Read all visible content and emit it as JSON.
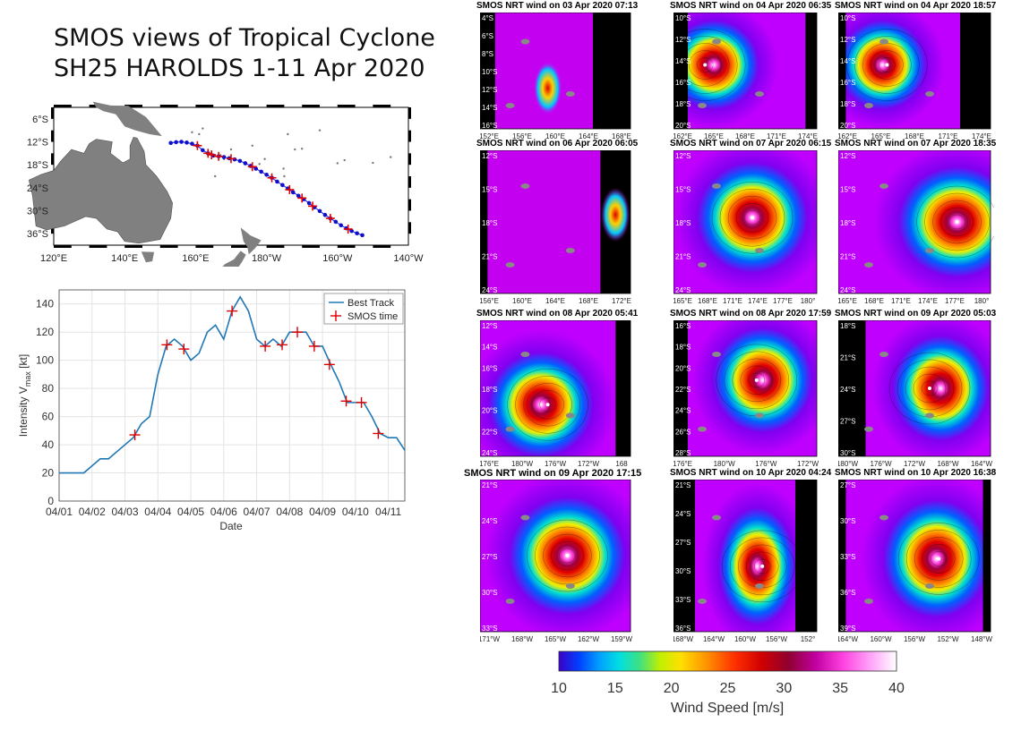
{
  "page_title": {
    "line1": "SMOS views of Tropical Cyclone",
    "line2": "SH25 HAROLDS 1-11 Apr 2020"
  },
  "track_map": {
    "lon_labels": [
      "120°E",
      "140°E",
      "160°E",
      "180°W",
      "160°W",
      "140°W"
    ],
    "lat_labels": [
      "6°S",
      "12°S",
      "18°S",
      "24°S",
      "30°S",
      "36°S"
    ],
    "best_track_points": [
      [
        153.0,
        -12.3
      ],
      [
        154.5,
        -12.1
      ],
      [
        156.0,
        -12.0
      ],
      [
        157.5,
        -12.2
      ],
      [
        159.0,
        -12.5
      ],
      [
        160.5,
        -13.0
      ],
      [
        162.0,
        -14.2
      ],
      [
        163.5,
        -15.0
      ],
      [
        165.0,
        -15.6
      ],
      [
        166.5,
        -15.8
      ],
      [
        168.0,
        -16.0
      ],
      [
        169.5,
        -16.3
      ],
      [
        171.0,
        -16.6
      ],
      [
        172.5,
        -17.0
      ],
      [
        174.0,
        -17.6
      ],
      [
        175.5,
        -18.3
      ],
      [
        177.0,
        -19.0
      ],
      [
        178.5,
        -19.8
      ],
      [
        180.0,
        -20.6
      ],
      [
        181.5,
        -21.4
      ],
      [
        183.0,
        -22.4
      ],
      [
        184.5,
        -23.3
      ],
      [
        186.0,
        -24.2
      ],
      [
        187.5,
        -25.2
      ],
      [
        189.0,
        -26.1
      ],
      [
        190.5,
        -27.0
      ],
      [
        192.0,
        -28.0
      ],
      [
        193.5,
        -29.1
      ],
      [
        195.0,
        -30.1
      ],
      [
        196.5,
        -31.1
      ],
      [
        198.0,
        -32.0
      ],
      [
        199.5,
        -32.9
      ],
      [
        201.0,
        -33.8
      ],
      [
        202.5,
        -34.6
      ],
      [
        204.0,
        -35.3
      ],
      [
        205.5,
        -35.9
      ],
      [
        207.0,
        -36.4
      ]
    ],
    "smos_points": [
      [
        160.5,
        -13.0
      ],
      [
        163.5,
        -15.0
      ],
      [
        164.5,
        -15.4
      ],
      [
        166.5,
        -15.8
      ],
      [
        170.0,
        -16.4
      ],
      [
        176.0,
        -18.5
      ],
      [
        181.5,
        -21.4
      ],
      [
        186.5,
        -24.5
      ],
      [
        190.0,
        -26.7
      ],
      [
        193.0,
        -28.8
      ],
      [
        198.0,
        -32.0
      ],
      [
        203.0,
        -34.8
      ]
    ]
  },
  "chart_data": {
    "type": "line",
    "xlabel": "Date",
    "ylabel": "Intensity V_max [kt]",
    "ylim": [
      0,
      150
    ],
    "yticks": [
      0,
      20,
      40,
      60,
      80,
      100,
      120,
      140
    ],
    "x_range": [
      "04/01 00:00",
      "04/11 12:00"
    ],
    "xticks": [
      "04/01",
      "04/02",
      "04/03",
      "04/04",
      "04/05",
      "04/06",
      "04/07",
      "04/08",
      "04/09",
      "04/10",
      "04/11"
    ],
    "grid": true,
    "legend_position": "top-right",
    "series": [
      {
        "name": "Best Track",
        "color": "#1f77b4",
        "points": [
          [
            "04/01 00:00",
            20
          ],
          [
            "04/01 18:00",
            20
          ],
          [
            "04/02 06:00",
            30
          ],
          [
            "04/02 12:00",
            30
          ],
          [
            "04/02 18:00",
            35
          ],
          [
            "04/03 06:00",
            45
          ],
          [
            "04/03 12:00",
            55
          ],
          [
            "04/03 18:00",
            60
          ],
          [
            "04/04 00:00",
            90
          ],
          [
            "04/04 06:00",
            110
          ],
          [
            "04/04 12:00",
            115
          ],
          [
            "04/04 18:00",
            110
          ],
          [
            "04/05 00:00",
            100
          ],
          [
            "04/05 06:00",
            105
          ],
          [
            "04/05 12:00",
            120
          ],
          [
            "04/05 18:00",
            125
          ],
          [
            "04/06 00:00",
            115
          ],
          [
            "04/06 06:00",
            135
          ],
          [
            "04/06 12:00",
            145
          ],
          [
            "04/06 18:00",
            135
          ],
          [
            "04/07 00:00",
            115
          ],
          [
            "04/07 06:00",
            110
          ],
          [
            "04/07 12:00",
            115
          ],
          [
            "04/07 18:00",
            110
          ],
          [
            "04/08 00:00",
            120
          ],
          [
            "04/08 06:00",
            120
          ],
          [
            "04/08 12:00",
            120
          ],
          [
            "04/08 18:00",
            110
          ],
          [
            "04/09 00:00",
            110
          ],
          [
            "04/09 06:00",
            97
          ],
          [
            "04/09 12:00",
            85
          ],
          [
            "04/09 18:00",
            70
          ],
          [
            "04/10 00:00",
            70
          ],
          [
            "04/10 06:00",
            70
          ],
          [
            "04/10 12:00",
            60
          ],
          [
            "04/10 18:00",
            48
          ],
          [
            "04/11 00:00",
            45
          ],
          [
            "04/11 06:00",
            45
          ],
          [
            "04/11 12:00",
            36
          ]
        ]
      },
      {
        "name": "SMOS time",
        "color": "#e00000",
        "points": [
          [
            "04/03 07:13",
            47
          ],
          [
            "04/04 06:35",
            111
          ],
          [
            "04/04 18:57",
            108
          ],
          [
            "04/06 06:05",
            135
          ],
          [
            "04/07 06:15",
            110
          ],
          [
            "04/07 18:35",
            111
          ],
          [
            "04/08 05:41",
            120
          ],
          [
            "04/08 17:59",
            110
          ],
          [
            "04/09 05:03",
            97
          ],
          [
            "04/09 17:15",
            71
          ],
          [
            "04/10 04:24",
            70
          ],
          [
            "04/10 16:38",
            48
          ]
        ]
      }
    ]
  },
  "panels": [
    {
      "title": "SMOS NRT wind on 03 Apr 2020 07:13",
      "lat_labels": [
        "4°S",
        "6°S",
        "8°S",
        "10°S",
        "12°S",
        "14°S",
        "16°S"
      ],
      "lon_labels": [
        "152°E",
        "156°E",
        "160°E",
        "164°E",
        "168°E"
      ]
    },
    {
      "title": "SMOS NRT wind on 04 Apr 2020 06:35",
      "lat_labels": [
        "10°S",
        "12°S",
        "14°S",
        "16°S",
        "18°S",
        "20°S"
      ],
      "lon_labels": [
        "162°E",
        "165°E",
        "168°E",
        "171°E",
        "174°E"
      ]
    },
    {
      "title": "SMOS NRT wind on 04 Apr 2020 18:57",
      "lat_labels": [
        "10°S",
        "12°S",
        "14°S",
        "16°S",
        "18°S",
        "20°S"
      ],
      "lon_labels": [
        "162°E",
        "165°E",
        "168°E",
        "171°E",
        "174°E"
      ]
    },
    {
      "title": "SMOS NRT wind on 06 Apr 2020 06:05",
      "lat_labels": [
        "12°S",
        "15°S",
        "18°S",
        "21°S",
        "24°S"
      ],
      "lon_labels": [
        "156°E",
        "160°E",
        "164°E",
        "168°E",
        "172°E"
      ]
    },
    {
      "title": "SMOS NRT wind on 07 Apr 2020 06:15",
      "lat_labels": [
        "12°S",
        "15°S",
        "18°S",
        "21°S",
        "24°S"
      ],
      "lon_labels": [
        "165°E",
        "168°E",
        "171°E",
        "174°E",
        "177°E",
        "180°"
      ]
    },
    {
      "title": "SMOS NRT wind on 07 Apr 2020 18:35",
      "lat_labels": [
        "12°S",
        "15°S",
        "18°S",
        "21°S",
        "24°S"
      ],
      "lon_labels": [
        "165°E",
        "168°E",
        "171°E",
        "174°E",
        "177°E",
        "180°"
      ]
    },
    {
      "title": "SMOS NRT wind on 08 Apr 2020 05:41",
      "lat_labels": [
        "12°S",
        "14°S",
        "16°S",
        "18°S",
        "20°S",
        "22°S",
        "24°S"
      ],
      "lon_labels": [
        "176°E",
        "180°W",
        "176°W",
        "172°W",
        "168"
      ]
    },
    {
      "title": "SMOS NRT wind on 08 Apr 2020 17:59",
      "lat_labels": [
        "16°S",
        "18°S",
        "20°S",
        "22°S",
        "24°S",
        "26°S",
        "28°S"
      ],
      "lon_labels": [
        "176°E",
        "180°W",
        "176°W",
        "172°W"
      ]
    },
    {
      "title": "SMOS NRT wind on 09 Apr 2020 05:03",
      "lat_labels": [
        "18°S",
        "21°S",
        "24°S",
        "27°S",
        "30°S"
      ],
      "lon_labels": [
        "180°W",
        "176°W",
        "172°W",
        "168°W",
        "164°W"
      ]
    },
    {
      "title": "SMOS NRT wind on 09 Apr 2020 17:15",
      "lat_labels": [
        "21°S",
        "24°S",
        "27°S",
        "30°S",
        "33°S"
      ],
      "lon_labels": [
        "171°W",
        "168°W",
        "165°W",
        "162°W",
        "159°W"
      ]
    },
    {
      "title": "SMOS NRT wind on 10 Apr 2020 04:24",
      "lat_labels": [
        "21°S",
        "24°S",
        "27°S",
        "30°S",
        "33°S",
        "36°S"
      ],
      "lon_labels": [
        "168°W",
        "164°W",
        "160°W",
        "156°W",
        "152°"
      ]
    },
    {
      "title": "SMOS NRT wind on 10 Apr 2020  16:38",
      "lat_labels": [
        "27°S",
        "30°S",
        "33°S",
        "36°S",
        "39°S"
      ],
      "lon_labels": [
        "164°W",
        "160°W",
        "156°W",
        "152°W",
        "148°W"
      ]
    }
  ],
  "colorbar": {
    "label": "Wind Speed [m/s]",
    "ticks": [
      "10",
      "15",
      "20",
      "25",
      "30",
      "35",
      "40"
    ],
    "range": [
      10,
      40
    ]
  }
}
